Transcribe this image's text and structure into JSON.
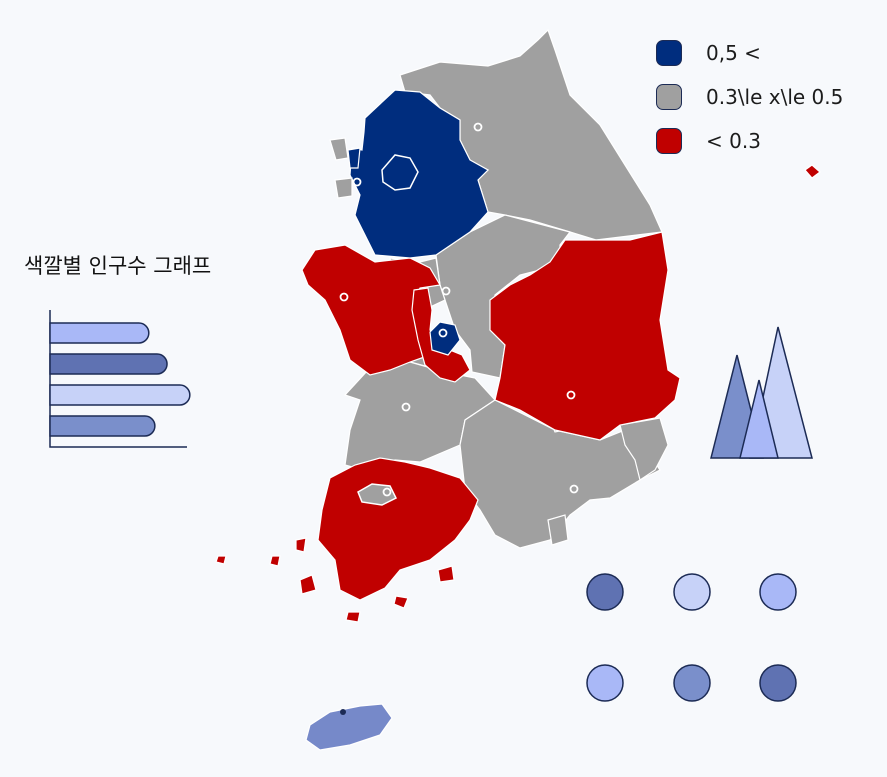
{
  "map": {
    "colors": {
      "high": "#002d7e",
      "mid": "#a0a0a0",
      "low": "#c00000",
      "jeju": "#7689c9",
      "border": "#ffffff"
    }
  },
  "legend": {
    "items": [
      {
        "label": "0,5 <",
        "color": "#002d7e"
      },
      {
        "label": "0.3\\le x\\le 0.5",
        "color": "#a0a0a0"
      },
      {
        "label": "< 0.3",
        "color": "#c00000"
      }
    ]
  },
  "side_chart": {
    "title": "색깔별 인구수 그래프",
    "bars": [
      {
        "value": 0.65,
        "color": "#a9b8f7"
      },
      {
        "value": 0.77,
        "color": "#5f72b2"
      },
      {
        "value": 0.92,
        "color": "#c7d2f8"
      },
      {
        "value": 0.69,
        "color": "#7a8fcb"
      }
    ]
  },
  "decor": {
    "triangle_colors": [
      "#7a8fcb",
      "#c7d2f8",
      "#a9b8f7"
    ],
    "dot_colors": [
      "#5f72b2",
      "#c7d2f8",
      "#a9b8f7",
      "#a9b8f7",
      "#7a8fcb",
      "#5f72b2"
    ]
  }
}
